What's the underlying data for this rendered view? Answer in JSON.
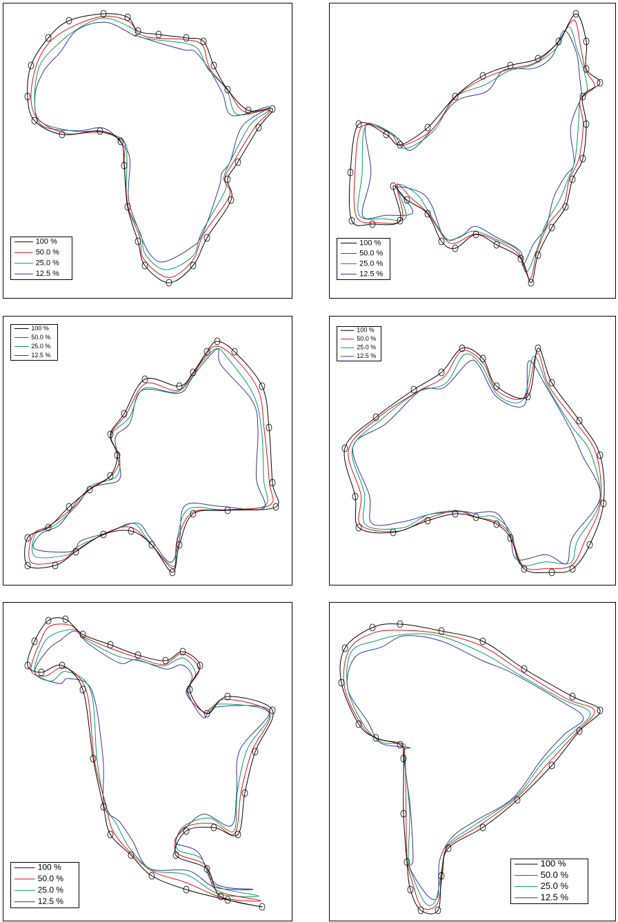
{
  "panels": [
    {
      "legend": [
        {
          "label": "100 %",
          "color": "#000000"
        },
        {
          "label": "50.0 %",
          "color": "#dd1111"
        },
        {
          "label": "25.0  %",
          "color": "#009966"
        },
        {
          "label": "12.5 %",
          "color": "#333399"
        }
      ]
    },
    {
      "legend": [
        {
          "label": "100 %",
          "color": "#000000"
        },
        {
          "label": "50.0 %",
          "color": "#dd1111"
        },
        {
          "label": "25.0  %",
          "color": "#009966"
        },
        {
          "label": "12.5 %",
          "color": "#333399"
        }
      ]
    },
    {
      "legend": [
        {
          "label": "100 %",
          "color": "#000000"
        },
        {
          "label": "50.0 %",
          "color": "#dd1111"
        },
        {
          "label": "25.0  %",
          "color": "#009966"
        },
        {
          "label": "12.5 %",
          "color": "#333399"
        }
      ]
    },
    {
      "legend": [
        {
          "label": "100 %",
          "color": "#000000"
        },
        {
          "label": "50.0 %",
          "color": "#dd1111"
        },
        {
          "label": "25.0  %",
          "color": "#009966"
        },
        {
          "label": "12.5 %",
          "color": "#333399"
        }
      ]
    },
    {
      "legend": [
        {
          "label": "100 %",
          "color": "#000000"
        },
        {
          "label": "50.0 %",
          "color": "#dd1111"
        },
        {
          "label": "25.0  %",
          "color": "#009966"
        },
        {
          "label": "12.5 %",
          "color": "#333399"
        }
      ]
    },
    {
      "legend": [
        {
          "label": "100 %",
          "color": "#000000"
        },
        {
          "label": "50.0 %",
          "color": "#dd1111"
        },
        {
          "label": "25.0  %",
          "color": "#009966"
        },
        {
          "label": "12.5 %",
          "color": "#333399"
        }
      ]
    }
  ]
}
